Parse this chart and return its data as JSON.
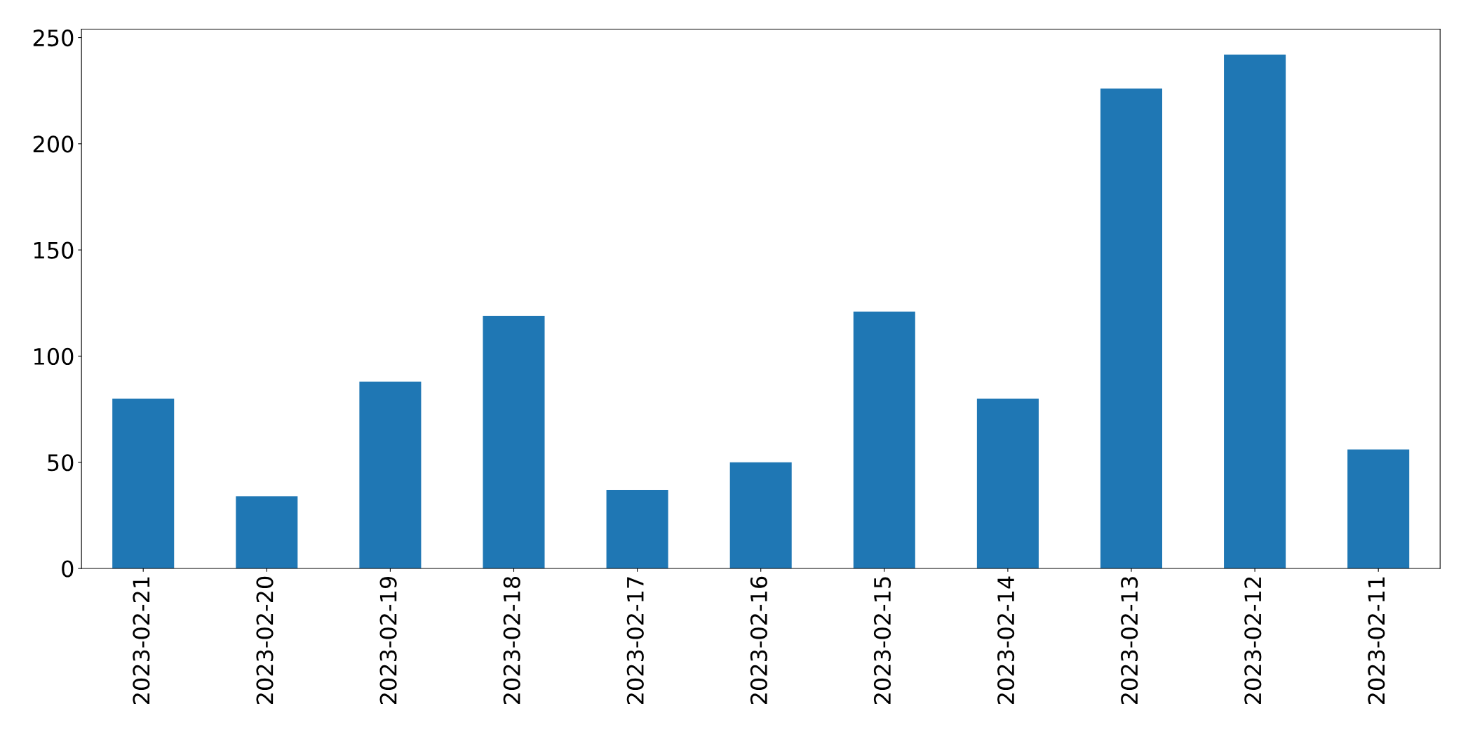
{
  "chart_data": {
    "type": "bar",
    "categories": [
      "2023-02-21",
      "2023-02-20",
      "2023-02-19",
      "2023-02-18",
      "2023-02-17",
      "2023-02-16",
      "2023-02-15",
      "2023-02-14",
      "2023-02-13",
      "2023-02-12",
      "2023-02-11"
    ],
    "values": [
      80,
      34,
      88,
      119,
      37,
      50,
      121,
      80,
      226,
      242,
      56
    ],
    "color": "#1f77b4",
    "ylim": [
      0,
      254
    ],
    "yticks": [
      0,
      50,
      100,
      150,
      200,
      250
    ],
    "grid": false
  }
}
